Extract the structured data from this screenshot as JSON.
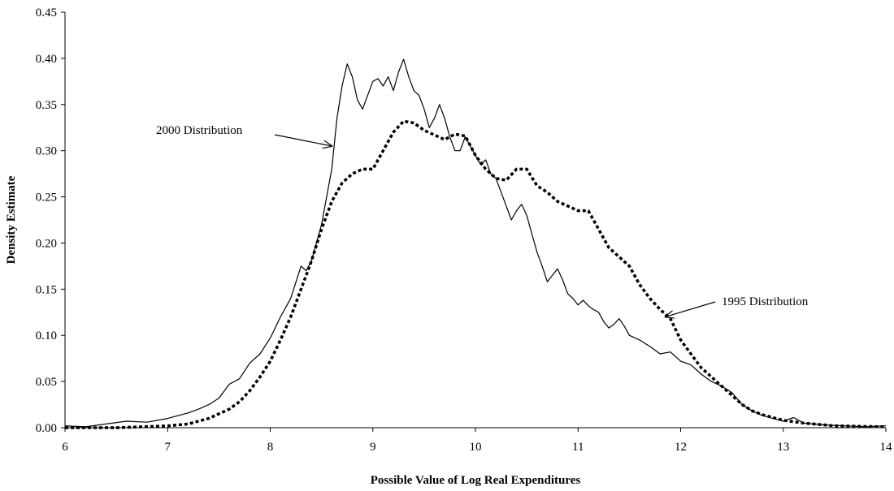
{
  "chart_data": {
    "type": "line",
    "title": "",
    "xlabel": "Possible Value of Log Real Expenditures",
    "ylabel": "Density Estimate",
    "xlim": [
      6,
      14
    ],
    "ylim": [
      0,
      0.45
    ],
    "x_ticks": [
      "6",
      "7",
      "8",
      "9",
      "10",
      "11",
      "12",
      "13",
      "14"
    ],
    "y_ticks": [
      "0.00",
      "0.05",
      "0.10",
      "0.15",
      "0.20",
      "0.25",
      "0.30",
      "0.35",
      "0.40",
      "0.45"
    ],
    "grid": false,
    "legend": "none",
    "annotations": [
      {
        "text": "2000 Distribution",
        "series": "2000",
        "arrow_to": [
          8.6,
          0.305
        ]
      },
      {
        "text": "1995 Distribution",
        "series": "1995",
        "arrow_to": [
          11.85,
          0.12
        ]
      }
    ],
    "series": [
      {
        "name": "2000 Distribution",
        "style": "solid",
        "color": "#000000",
        "x": [
          6.0,
          6.2,
          6.4,
          6.6,
          6.8,
          7.0,
          7.1,
          7.2,
          7.3,
          7.4,
          7.5,
          7.6,
          7.7,
          7.8,
          7.9,
          8.0,
          8.1,
          8.2,
          8.3,
          8.35,
          8.4,
          8.5,
          8.6,
          8.65,
          8.7,
          8.75,
          8.8,
          8.85,
          8.9,
          8.95,
          9.0,
          9.05,
          9.1,
          9.15,
          9.2,
          9.25,
          9.3,
          9.35,
          9.4,
          9.45,
          9.5,
          9.55,
          9.6,
          9.65,
          9.7,
          9.75,
          9.8,
          9.85,
          9.9,
          9.95,
          10.0,
          10.05,
          10.1,
          10.15,
          10.2,
          10.25,
          10.3,
          10.35,
          10.4,
          10.45,
          10.5,
          10.55,
          10.6,
          10.65,
          10.7,
          10.75,
          10.8,
          10.85,
          10.9,
          10.95,
          11.0,
          11.05,
          11.1,
          11.15,
          11.2,
          11.25,
          11.3,
          11.35,
          11.4,
          11.45,
          11.5,
          11.6,
          11.7,
          11.8,
          11.9,
          12.0,
          12.1,
          12.2,
          12.3,
          12.4,
          12.5,
          12.6,
          12.7,
          12.8,
          12.9,
          13.0,
          13.1,
          13.2,
          13.4,
          13.6,
          13.8,
          14.0
        ],
        "values": [
          0.002,
          0.001,
          0.004,
          0.007,
          0.006,
          0.01,
          0.013,
          0.016,
          0.02,
          0.025,
          0.032,
          0.047,
          0.053,
          0.07,
          0.08,
          0.097,
          0.12,
          0.14,
          0.175,
          0.17,
          0.18,
          0.22,
          0.28,
          0.335,
          0.37,
          0.394,
          0.38,
          0.355,
          0.345,
          0.36,
          0.375,
          0.378,
          0.37,
          0.38,
          0.365,
          0.385,
          0.399,
          0.38,
          0.365,
          0.36,
          0.345,
          0.325,
          0.335,
          0.35,
          0.335,
          0.315,
          0.3,
          0.3,
          0.315,
          0.305,
          0.295,
          0.285,
          0.29,
          0.275,
          0.27,
          0.255,
          0.24,
          0.225,
          0.235,
          0.242,
          0.23,
          0.21,
          0.19,
          0.175,
          0.158,
          0.165,
          0.172,
          0.16,
          0.145,
          0.14,
          0.133,
          0.138,
          0.132,
          0.128,
          0.125,
          0.115,
          0.108,
          0.112,
          0.118,
          0.11,
          0.1,
          0.095,
          0.088,
          0.08,
          0.082,
          0.072,
          0.068,
          0.058,
          0.05,
          0.045,
          0.038,
          0.025,
          0.018,
          0.013,
          0.01,
          0.007,
          0.011,
          0.005,
          0.003,
          0.002,
          0.001,
          0.002
        ]
      },
      {
        "name": "1995 Distribution",
        "style": "dotted",
        "color": "#000000",
        "x": [
          6.0,
          6.5,
          7.0,
          7.2,
          7.4,
          7.6,
          7.7,
          7.8,
          7.9,
          8.0,
          8.1,
          8.2,
          8.3,
          8.4,
          8.5,
          8.6,
          8.7,
          8.8,
          8.9,
          9.0,
          9.1,
          9.2,
          9.3,
          9.4,
          9.5,
          9.6,
          9.7,
          9.8,
          9.9,
          10.0,
          10.1,
          10.2,
          10.3,
          10.4,
          10.5,
          10.6,
          10.7,
          10.8,
          10.9,
          11.0,
          11.1,
          11.2,
          11.3,
          11.4,
          11.5,
          11.6,
          11.7,
          11.8,
          11.9,
          12.0,
          12.1,
          12.2,
          12.3,
          12.4,
          12.5,
          12.6,
          12.7,
          12.8,
          12.9,
          13.0,
          13.2,
          13.5,
          14.0
        ],
        "values": [
          0.0,
          0.0,
          0.002,
          0.004,
          0.01,
          0.02,
          0.028,
          0.04,
          0.055,
          0.072,
          0.095,
          0.12,
          0.15,
          0.18,
          0.215,
          0.245,
          0.265,
          0.275,
          0.28,
          0.28,
          0.3,
          0.32,
          0.332,
          0.33,
          0.322,
          0.317,
          0.312,
          0.318,
          0.316,
          0.295,
          0.28,
          0.27,
          0.268,
          0.28,
          0.28,
          0.262,
          0.255,
          0.245,
          0.24,
          0.235,
          0.235,
          0.215,
          0.195,
          0.185,
          0.175,
          0.155,
          0.14,
          0.128,
          0.118,
          0.095,
          0.08,
          0.065,
          0.055,
          0.045,
          0.035,
          0.025,
          0.018,
          0.014,
          0.011,
          0.008,
          0.005,
          0.002,
          0.001
        ]
      }
    ]
  }
}
